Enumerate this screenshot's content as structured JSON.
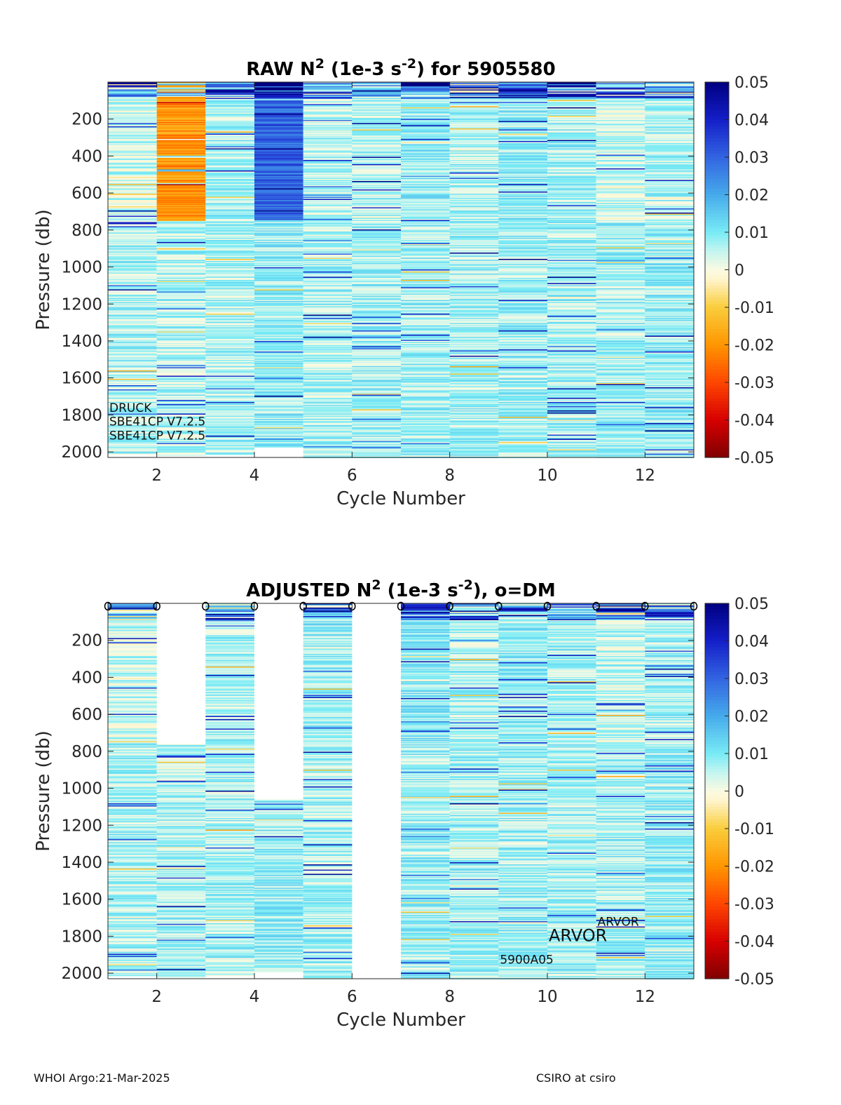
{
  "chart_data": [
    {
      "type": "heatmap",
      "title_main": "RAW N",
      "title_sup1": "2",
      "title_mid": " (1e-3 s",
      "title_sup2": "-2",
      "title_end": ") for 5905580",
      "xlabel": "Cycle Number",
      "ylabel": "Pressure (db)",
      "xlim": [
        1,
        13
      ],
      "ylim": [
        2030,
        0
      ],
      "xticks": [
        2,
        4,
        6,
        8,
        10,
        12
      ],
      "yticks": [
        200,
        400,
        600,
        800,
        1000,
        1200,
        1400,
        1600,
        1800,
        2000
      ],
      "clim": [
        -0.05,
        0.05
      ],
      "colorbar_ticks": [
        "0.05",
        "0.04",
        "0.03",
        "0.02",
        "0.01",
        "0",
        "-0.01",
        "-0.02",
        "-0.03",
        "-0.04",
        "-0.05"
      ],
      "cycles": [
        {
          "cycle": 1,
          "pmin": 0,
          "pmax": 2010,
          "upper": 0.004,
          "deep": 0.006
        },
        {
          "cycle": 2,
          "pmin": 0,
          "pmax": 2020,
          "upper": -0.02,
          "deep": 0.006
        },
        {
          "cycle": 3,
          "pmin": 0,
          "pmax": 2010,
          "upper": 0.006,
          "deep": 0.006
        },
        {
          "cycle": 4,
          "pmin": 0,
          "pmax": 1970,
          "upper": 0.03,
          "deep": 0.008
        },
        {
          "cycle": 5,
          "pmin": 0,
          "pmax": 2030,
          "upper": 0.005,
          "deep": 0.006
        },
        {
          "cycle": 6,
          "pmin": 0,
          "pmax": 2030,
          "upper": 0.006,
          "deep": 0.007
        },
        {
          "cycle": 7,
          "pmin": 0,
          "pmax": 2030,
          "upper": 0.008,
          "deep": 0.007
        },
        {
          "cycle": 8,
          "pmin": 0,
          "pmax": 2030,
          "upper": 0.006,
          "deep": 0.007
        },
        {
          "cycle": 9,
          "pmin": 0,
          "pmax": 2030,
          "upper": 0.008,
          "deep": 0.007
        },
        {
          "cycle": 10,
          "pmin": 0,
          "pmax": 2030,
          "upper": 0.007,
          "deep": 0.007
        },
        {
          "cycle": 11,
          "pmin": 0,
          "pmax": 2030,
          "upper": 0.004,
          "deep": 0.007
        },
        {
          "cycle": 12,
          "pmin": 0,
          "pmax": 2030,
          "upper": 0.006,
          "deep": 0.008
        }
      ],
      "annotations": [
        {
          "text": "DRUCK",
          "x": 1.0,
          "p": 1760
        },
        {
          "text": "SBE41CP V7.2.5",
          "x": 1.0,
          "p": 1835
        },
        {
          "text": "SBE41CP V7.2.5",
          "x": 1.0,
          "p": 1910
        }
      ]
    },
    {
      "type": "heatmap",
      "title_main": "ADJUSTED N",
      "title_sup1": "2",
      "title_mid": " (1e-3 s",
      "title_sup2": "-2",
      "title_end": "), o=DM",
      "xlabel": "Cycle Number",
      "ylabel": "Pressure (db)",
      "xlim": [
        1,
        13
      ],
      "ylim": [
        2030,
        0
      ],
      "xticks": [
        2,
        4,
        6,
        8,
        10,
        12
      ],
      "yticks": [
        200,
        400,
        600,
        800,
        1000,
        1200,
        1400,
        1600,
        1800,
        2000
      ],
      "clim": [
        -0.05,
        0.05
      ],
      "colorbar_ticks": [
        "0.05",
        "0.04",
        "0.03",
        "0.02",
        "0.01",
        "0",
        "-0.01",
        "-0.02",
        "-0.03",
        "-0.04",
        "-0.05"
      ],
      "dm_marker": "o",
      "dm_cycles": [
        1,
        2,
        3,
        4,
        5,
        6,
        7,
        8,
        9,
        10,
        11,
        12,
        13
      ],
      "cycles": [
        {
          "cycle": 1,
          "pmin": 0,
          "pmax": 2010,
          "upper": 0.004,
          "deep": 0.006
        },
        {
          "cycle": 2,
          "pmin": 760,
          "pmax": 2020,
          "upper": 0.006,
          "deep": 0.006
        },
        {
          "cycle": 3,
          "pmin": 0,
          "pmax": 2010,
          "upper": 0.006,
          "deep": 0.006
        },
        {
          "cycle": 4,
          "pmin": 1060,
          "pmax": 1990,
          "upper": 0.006,
          "deep": 0.008
        },
        {
          "cycle": 5,
          "pmin": 0,
          "pmax": 2030,
          "upper": 0.008,
          "deep": 0.006
        },
        {
          "cycle": 7,
          "pmin": 0,
          "pmax": 2030,
          "upper": 0.009,
          "deep": 0.007
        },
        {
          "cycle": 8,
          "pmin": 0,
          "pmax": 2030,
          "upper": 0.006,
          "deep": 0.007
        },
        {
          "cycle": 9,
          "pmin": 0,
          "pmax": 2030,
          "upper": 0.008,
          "deep": 0.007
        },
        {
          "cycle": 10,
          "pmin": 0,
          "pmax": 2030,
          "upper": 0.006,
          "deep": 0.007
        },
        {
          "cycle": 11,
          "pmin": 0,
          "pmax": 2030,
          "upper": 0.004,
          "deep": 0.007
        },
        {
          "cycle": 12,
          "pmin": 0,
          "pmax": 2030,
          "upper": 0.007,
          "deep": 0.008
        }
      ],
      "annotations": [
        {
          "text": "ARVOR",
          "x": 11.0,
          "p": 1720,
          "size": "small"
        },
        {
          "text": "ARVOR",
          "x": 10.0,
          "p": 1805,
          "size": "large"
        },
        {
          "text": "5900A05",
          "x": 9.0,
          "p": 1925,
          "size": "small"
        }
      ]
    }
  ],
  "footer": {
    "left": "WHOI Argo:21-Mar-2025",
    "right": "CSIRO at csiro"
  },
  "colors": {
    "colormap": "jet-like diverging (dark red → yellow → white → cyan → dark blue)",
    "axis": "#262626",
    "dm_marker": "#000000"
  }
}
